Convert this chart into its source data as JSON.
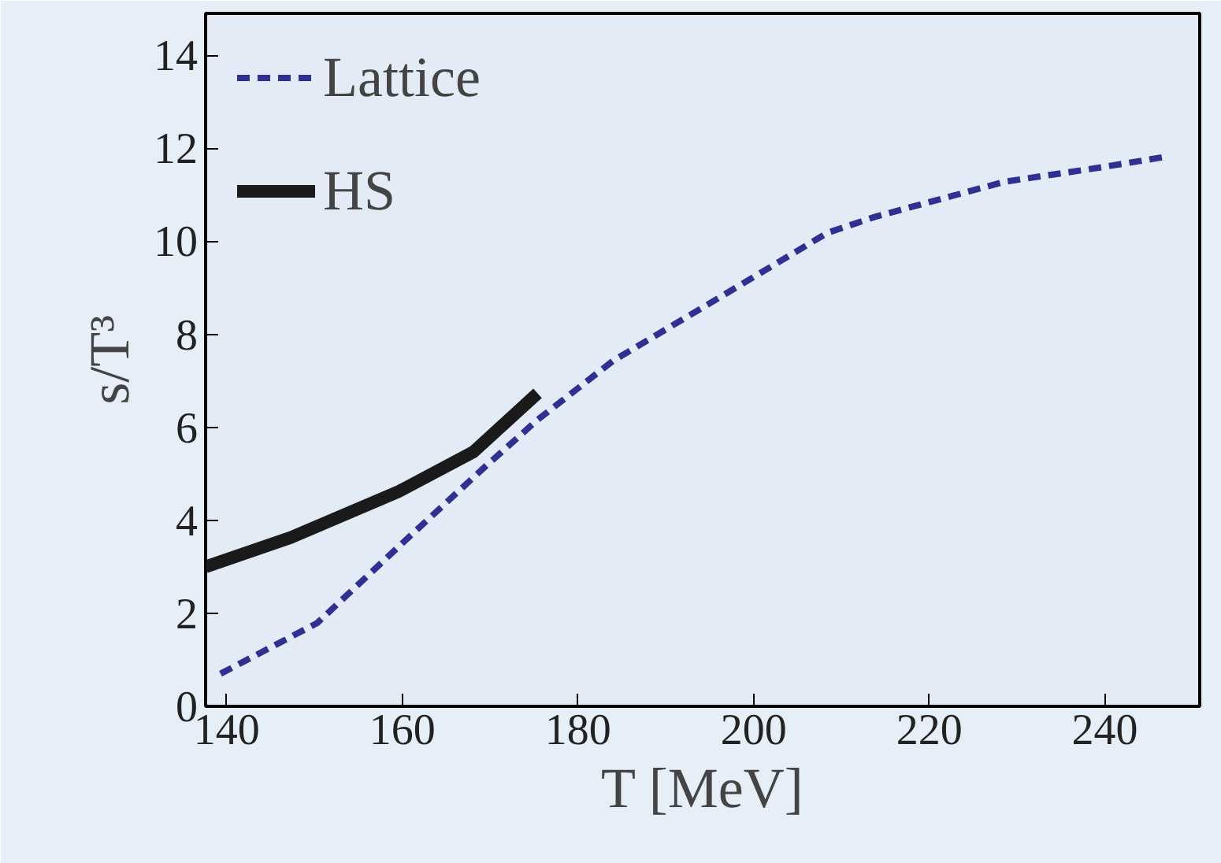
{
  "chart_data": {
    "type": "line",
    "xlabel": "T [MeV]",
    "ylabel": "s/T³",
    "xlim": [
      137.6,
      250.8
    ],
    "ylim": [
      0,
      14.9
    ],
    "xticks": [
      140,
      160,
      180,
      200,
      220,
      240
    ],
    "yticks": [
      0,
      2,
      4,
      6,
      8,
      10,
      12,
      14
    ],
    "legend": "top left",
    "grid": false,
    "series": [
      {
        "name": "Lattice",
        "color": "#2e3192",
        "line_style": "dashed",
        "x": [
          139.3,
          150.3,
          160.7,
          169.3,
          175.4,
          184.0,
          196.2,
          208.4,
          213.9,
          228.6,
          239.6,
          247
        ],
        "values": [
          0.7,
          1.79,
          3.63,
          5.13,
          6.16,
          7.43,
          8.8,
          10.18,
          10.53,
          11.28,
          11.59,
          11.82
        ]
      },
      {
        "name": "HS",
        "color": "#1a1a1a",
        "line_style": "solid",
        "x": [
          137.6,
          147.3,
          159.5,
          168.1,
          175.4
        ],
        "values": [
          3.0,
          3.63,
          4.61,
          5.47,
          6.73
        ]
      }
    ]
  }
}
